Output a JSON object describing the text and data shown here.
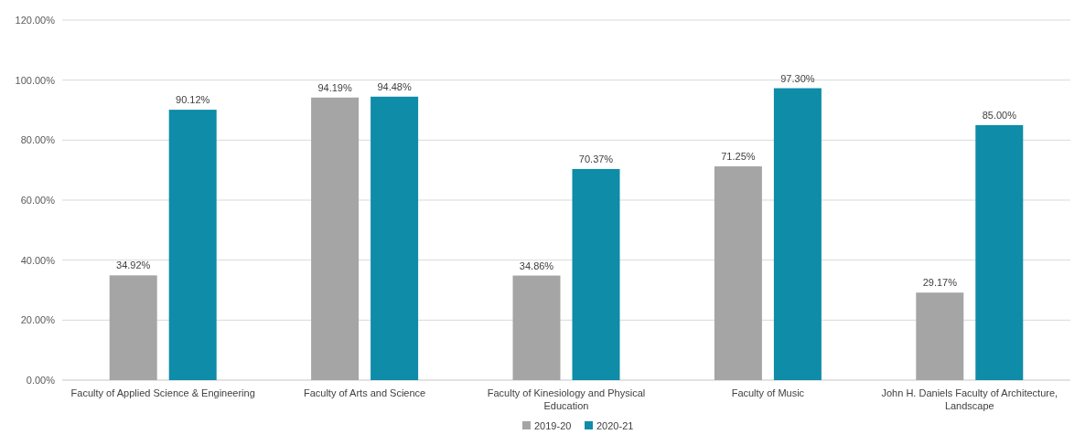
{
  "chart_data": {
    "type": "bar",
    "categories": [
      "Faculty of Applied Science & Engineering",
      "Faculty of Arts and Science",
      "Faculty of Kinesiology and Physical Education",
      "Faculty of Music",
      "John H. Daniels Faculty of Architecture, Landscape"
    ],
    "series": [
      {
        "name": "2019-20",
        "color": "#a5a5a5",
        "values": [
          34.92,
          94.19,
          34.86,
          71.25,
          29.17
        ],
        "value_labels": [
          "34.92%",
          "94.19%",
          "34.86%",
          "71.25%",
          "29.17%"
        ]
      },
      {
        "name": "2020-21",
        "color": "#0e8ca8",
        "values": [
          90.12,
          94.48,
          70.37,
          97.3,
          85.0
        ],
        "value_labels": [
          "90.12%",
          "94.48%",
          "70.37%",
          "97.30%",
          "85.00%"
        ]
      }
    ],
    "ylim": [
      0,
      120
    ],
    "yticks": [
      {
        "value": 0,
        "label": "0.00%"
      },
      {
        "value": 20,
        "label": "20.00%"
      },
      {
        "value": 40,
        "label": "40.00%"
      },
      {
        "value": 60,
        "label": "60.00%"
      },
      {
        "value": 80,
        "label": "80.00%"
      },
      {
        "value": 100,
        "label": "100.00%"
      },
      {
        "value": 120,
        "label": "120.00%"
      }
    ],
    "grid": "y",
    "legend": "bottom"
  }
}
